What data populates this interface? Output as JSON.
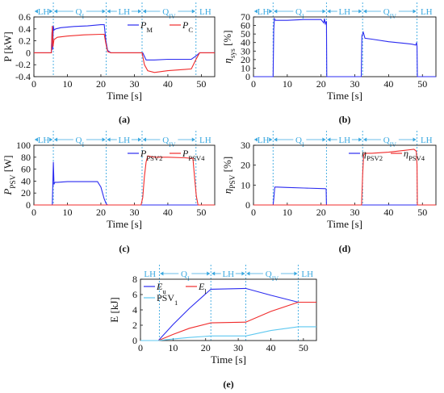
{
  "colors": {
    "blue": "#2b2bf0",
    "red": "#f02b2b",
    "cyan": "#5ec8f0",
    "axis": "#111111",
    "phase": "#3aa8e0"
  },
  "chart_data": [
    {
      "id": "a",
      "type": "line",
      "caption": "(a)",
      "xlabel": "Time [s]",
      "ylabel": "P [kW]",
      "xlim": [
        0,
        54
      ],
      "ylim": [
        -0.4,
        0.6
      ],
      "xticks": [
        0,
        10,
        20,
        30,
        40,
        50
      ],
      "yticks": [
        -0.4,
        -0.2,
        0,
        0.2,
        0.4,
        0.6
      ],
      "ytick_labels": [
        "-0.4",
        "-0.2",
        "0",
        "0.2",
        "0.4",
        "0.6"
      ],
      "legend": {
        "placement": "top-right",
        "entries": [
          "P_M",
          "P_C"
        ]
      },
      "phases": [
        "LH",
        "QI",
        "LH",
        "QIV",
        "LH"
      ],
      "phase_bounds": [
        0,
        5.8,
        21.6,
        32.3,
        48.4,
        54
      ],
      "series": [
        {
          "name": "P_M",
          "color": "blue",
          "x": [
            0,
            5.2,
            5.4,
            5.6,
            5.8,
            6,
            6.5,
            8,
            12,
            16,
            20,
            21,
            21.5,
            22,
            23,
            25,
            30,
            32.5,
            33.5,
            36,
            40,
            45,
            47,
            48.5,
            49.5,
            54
          ],
          "y": [
            0,
            0,
            0.35,
            0.05,
            0.45,
            0.38,
            0.4,
            0.42,
            0.44,
            0.45,
            0.47,
            0.47,
            0.2,
            0.04,
            0,
            0,
            0,
            0,
            -0.12,
            -0.12,
            -0.11,
            -0.11,
            -0.11,
            -0.05,
            0,
            0
          ]
        },
        {
          "name": "P_C",
          "color": "red",
          "x": [
            0,
            5.2,
            5.5,
            5.7,
            6,
            7,
            10,
            15,
            20,
            21,
            21.5,
            22,
            23,
            26,
            30,
            32.3,
            33,
            34,
            36,
            40,
            45,
            47,
            48.5,
            49.5,
            54
          ],
          "y": [
            0,
            0,
            0.45,
            0.1,
            0.22,
            0.26,
            0.28,
            0.3,
            0.31,
            0.31,
            0.15,
            0.02,
            0,
            0,
            0,
            0,
            -0.2,
            -0.3,
            -0.33,
            -0.3,
            -0.28,
            -0.27,
            -0.1,
            0,
            0
          ]
        }
      ]
    },
    {
      "id": "b",
      "type": "line",
      "caption": "(b)",
      "xlabel": "Time [s]",
      "ylabel": "η_sys [%]",
      "xlim": [
        0,
        54
      ],
      "ylim": [
        0,
        70
      ],
      "xticks": [
        0,
        10,
        20,
        30,
        40,
        50
      ],
      "yticks": [
        0,
        10,
        20,
        30,
        40,
        50,
        60,
        70
      ],
      "ytick_labels": [
        "0",
        "10",
        "20",
        "30",
        "40",
        "50",
        "60",
        "70"
      ],
      "phases": [
        "LH",
        "QI",
        "LH",
        "QIV",
        "LH"
      ],
      "phase_bounds": [
        0,
        5.8,
        21.6,
        32.3,
        48.4,
        54
      ],
      "series": [
        {
          "name": "",
          "color": "blue",
          "x": [
            0,
            5.8,
            6,
            6.2,
            6.5,
            7,
            10,
            15,
            20,
            20.8,
            21,
            21.3,
            21.6,
            21.7,
            22,
            31.9,
            32.1,
            32.5,
            33,
            35,
            40,
            45,
            47,
            48,
            48.3,
            48.4,
            48.5,
            54
          ],
          "y": [
            0,
            0,
            55,
            68,
            66,
            66,
            66,
            67,
            67,
            63,
            68,
            62,
            65,
            0,
            0,
            0,
            48,
            52,
            45,
            44,
            41,
            39,
            38,
            37,
            40,
            35,
            0,
            0
          ]
        }
      ]
    },
    {
      "id": "c",
      "type": "line",
      "caption": "(c)",
      "xlabel": "Time [s]",
      "ylabel": "P_PSV [W]",
      "xlim": [
        0,
        54
      ],
      "ylim": [
        0,
        100
      ],
      "xticks": [
        0,
        10,
        20,
        30,
        40,
        50
      ],
      "yticks": [
        0,
        20,
        40,
        60,
        80,
        100
      ],
      "ytick_labels": [
        "0",
        "20",
        "40",
        "60",
        "80",
        "100"
      ],
      "legend": {
        "placement": "top-right",
        "entries": [
          "P_PSV2",
          "P_PSV4"
        ]
      },
      "phases": [
        "LH",
        "QI",
        "LH",
        "QIV",
        "LH"
      ],
      "phase_bounds": [
        0,
        5.8,
        21.6,
        32.3,
        48.4,
        54
      ],
      "series": [
        {
          "name": "P_PSV2",
          "color": "blue",
          "x": [
            0,
            5.5,
            5.8,
            6,
            6.3,
            7,
            10,
            15,
            19,
            20,
            21,
            21.6,
            22,
            54
          ],
          "y": [
            0,
            0,
            72,
            35,
            38,
            38,
            39,
            39,
            39,
            30,
            10,
            2,
            0,
            0
          ]
        },
        {
          "name": "P_PSV4",
          "color": "red",
          "x": [
            0,
            32,
            32.5,
            33,
            33.5,
            34,
            36,
            40,
            45,
            47.5,
            48,
            48.5,
            49,
            54
          ],
          "y": [
            0,
            0,
            12,
            48,
            72,
            82,
            80,
            80,
            79,
            78,
            45,
            15,
            0,
            0
          ]
        }
      ]
    },
    {
      "id": "d",
      "type": "line",
      "caption": "(d)",
      "xlabel": "Time [s]",
      "ylabel": "η_PSV [%]",
      "xlim": [
        0,
        54
      ],
      "ylim": [
        0,
        30
      ],
      "xticks": [
        0,
        10,
        20,
        30,
        40,
        50
      ],
      "yticks": [
        0,
        10,
        20,
        30
      ],
      "ytick_labels": [
        "0",
        "10",
        "20",
        "30"
      ],
      "legend": {
        "placement": "top-right",
        "entries": [
          "η_PSV2",
          "η_PSV4"
        ]
      },
      "phases": [
        "LH",
        "QI",
        "LH",
        "QIV",
        "LH"
      ],
      "phase_bounds": [
        0,
        5.8,
        21.6,
        32.3,
        48.4,
        54
      ],
      "series": [
        {
          "name": "η_PSV2",
          "color": "blue",
          "x": [
            0,
            5.8,
            6,
            6.3,
            7,
            10,
            15,
            21.3,
            21.5,
            21.6,
            54
          ],
          "y": [
            0,
            0,
            3,
            9,
            9,
            8.8,
            8.5,
            8.2,
            8,
            0,
            0
          ]
        },
        {
          "name": "η_PSV4",
          "color": "red",
          "x": [
            0,
            32,
            32.3,
            32.6,
            33,
            35,
            40,
            45,
            47.5,
            48.2,
            48.4,
            48.5,
            54
          ],
          "y": [
            0,
            0,
            15,
            25,
            26,
            26,
            26.5,
            27.5,
            28,
            27,
            20,
            0,
            0
          ]
        }
      ]
    },
    {
      "id": "e",
      "type": "line",
      "caption": "(e)",
      "xlabel": "Time [s]",
      "ylabel": "E [kJ]",
      "xlim": [
        0,
        54
      ],
      "ylim": [
        0,
        8
      ],
      "xticks": [
        0,
        10,
        20,
        30,
        40,
        50
      ],
      "yticks": [
        0,
        2,
        4,
        6,
        8
      ],
      "ytick_labels": [
        "0",
        "2",
        "4",
        "6",
        "8"
      ],
      "legend": {
        "placement": "top-left",
        "entries": [
          "E_u",
          "E_l",
          "PSV_1"
        ]
      },
      "phases": [
        "LH",
        "QI",
        "LH",
        "QIV",
        "LH"
      ],
      "phase_bounds": [
        0,
        5.8,
        21.6,
        32.3,
        48.4,
        54
      ],
      "series": [
        {
          "name": "E_u",
          "color": "blue",
          "x": [
            0,
            5.5,
            10,
            15,
            21.6,
            32.3,
            40,
            48.4,
            54
          ],
          "y": [
            0,
            0,
            2.1,
            4.2,
            6.7,
            6.8,
            5.9,
            5.0,
            5.0
          ]
        },
        {
          "name": "E_l",
          "color": "red",
          "x": [
            0,
            5.5,
            10,
            15,
            21.6,
            32.3,
            40,
            48.4,
            54
          ],
          "y": [
            0,
            0,
            0.8,
            1.6,
            2.3,
            2.4,
            3.8,
            5.0,
            5.0
          ]
        },
        {
          "name": "PSV_1",
          "color": "cyan",
          "x": [
            0,
            5.5,
            10,
            15,
            21.6,
            32.3,
            40,
            48.4,
            54
          ],
          "y": [
            0,
            0,
            0.2,
            0.4,
            0.6,
            0.6,
            1.3,
            1.8,
            1.8
          ]
        }
      ]
    }
  ]
}
